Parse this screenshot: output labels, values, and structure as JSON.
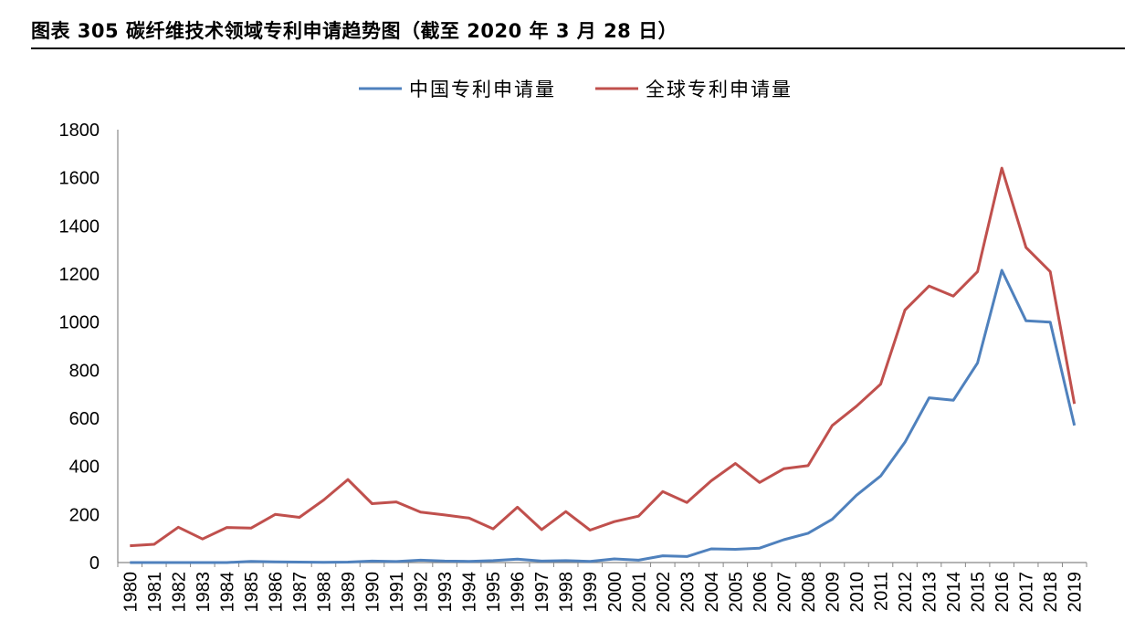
{
  "title": "图表 305  碳纤维技术领域专利申请趋势图（截至 2020 年 3 月 28 日）",
  "chart_data": {
    "type": "line",
    "x": [
      "1980",
      "1981",
      "1982",
      "1983",
      "1984",
      "1985",
      "1986",
      "1987",
      "1988",
      "1989",
      "1990",
      "1991",
      "1992",
      "1993",
      "1994",
      "1995",
      "1996",
      "1997",
      "1998",
      "1999",
      "2000",
      "2001",
      "2002",
      "2003",
      "2004",
      "2005",
      "2006",
      "2007",
      "2008",
      "2009",
      "2010",
      "2011",
      "2012",
      "2013",
      "2014",
      "2015",
      "2016",
      "2017",
      "2018",
      "2019"
    ],
    "series": [
      {
        "name": "中国专利申请量",
        "color": "#4F81BD",
        "values": [
          0,
          0,
          0,
          0,
          0,
          5,
          3,
          2,
          1,
          2,
          6,
          4,
          10,
          6,
          5,
          8,
          14,
          6,
          8,
          5,
          15,
          10,
          28,
          25,
          57,
          55,
          60,
          95,
          122,
          180,
          280,
          360,
          500,
          685,
          675,
          830,
          1215,
          1005,
          1000,
          570
        ]
      },
      {
        "name": "全球专利申请量",
        "color": "#C0504D",
        "values": [
          70,
          76,
          147,
          98,
          146,
          143,
          200,
          188,
          260,
          345,
          245,
          252,
          210,
          198,
          185,
          140,
          230,
          137,
          212,
          135,
          170,
          193,
          295,
          250,
          340,
          412,
          333,
          390,
          403,
          570,
          650,
          742,
          1050,
          1150,
          1108,
          1210,
          1640,
          1310,
          1210,
          660
        ]
      }
    ],
    "ylim": [
      0,
      1800
    ],
    "yticks": [
      0,
      200,
      400,
      600,
      800,
      1000,
      1200,
      1400,
      1600,
      1800
    ],
    "legend": "top-center",
    "grid": false
  }
}
